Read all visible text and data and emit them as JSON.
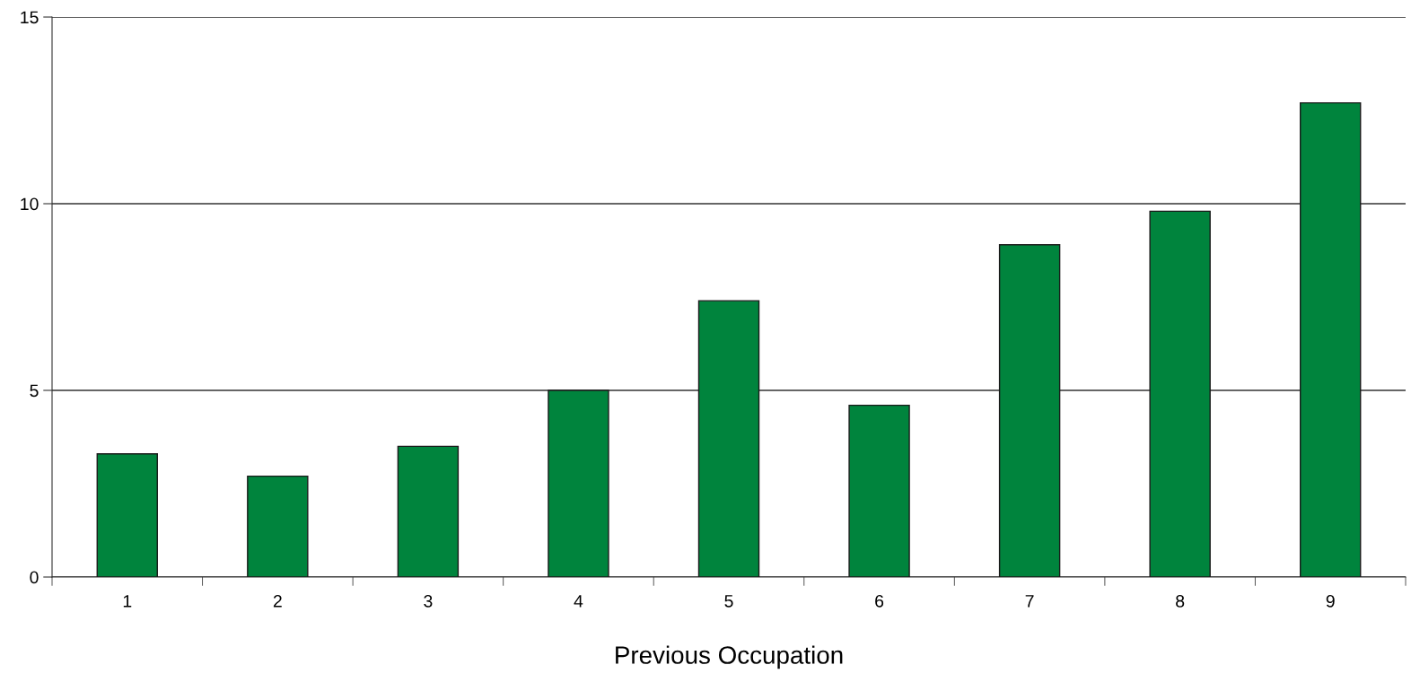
{
  "chart_data": {
    "type": "bar",
    "xlabel": "Previous Occupation",
    "categories": [
      "1",
      "2",
      "3",
      "4",
      "5",
      "6",
      "7",
      "8",
      "9"
    ],
    "values": [
      3.3,
      2.7,
      3.5,
      5.0,
      7.4,
      4.6,
      8.9,
      9.8,
      12.7
    ],
    "color": "#00843d",
    "ylim": [
      0,
      15
    ],
    "yticks": [
      0,
      5,
      10,
      15
    ],
    "grid": "y"
  }
}
